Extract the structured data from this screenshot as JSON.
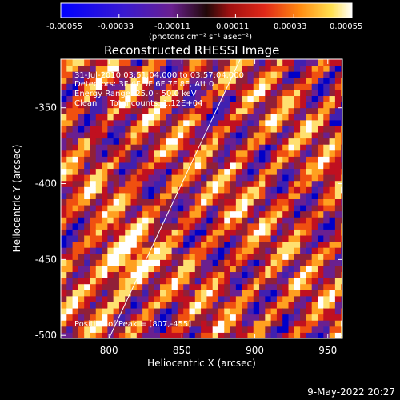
{
  "title": "Reconstructed RHESSI Image",
  "colorbar": {
    "min": -0.00055,
    "max": 0.00055,
    "tick_labels": [
      "-0.00055",
      "-0.00033",
      "-0.00011",
      "0.00011",
      "0.00033",
      "0.00055"
    ],
    "units_label": "(photons cm⁻² s⁻¹ asec⁻²)"
  },
  "info": {
    "time_range": "31-Jul-2010 03:51:04.000 to 03:57:04.000",
    "detectors": "Detectors: 3F 4F 5F 6F 7F 8F, Att 0",
    "energy_range": "Energy Range: 25.0 - 50.0 keV",
    "method_counts": "Clean     Total counts: 1.12E+04",
    "peak_position": "Position of Peak = [807,-455]"
  },
  "footer": {
    "date": "9-May-2022 20:27"
  },
  "chart_data": {
    "type": "heatmap",
    "title": "Reconstructed RHESSI Image",
    "xlabel": "Heliocentric X (arcsec)",
    "ylabel": "Heliocentric Y (arcsec)",
    "xlim": [
      767,
      960
    ],
    "ylim": [
      -502,
      -318
    ],
    "x_ticks": [
      800,
      850,
      900,
      950
    ],
    "y_ticks": [
      -350,
      -400,
      -450,
      -500
    ],
    "x_tick_labels": [
      "800",
      "850",
      "900",
      "950"
    ],
    "y_tick_labels": [
      "-350",
      "-400",
      "-450",
      "-500"
    ],
    "value_range": [
      -0.00055,
      0.00055
    ],
    "peak": [
      807,
      -455
    ],
    "limb_line": {
      "x": [
        800,
        890
      ],
      "y": [
        -502,
        -318
      ]
    },
    "colormap": [
      "#0000c8",
      "#4020b0",
      "#6a2090",
      "#902038",
      "#c01020",
      "#f05010",
      "#ffa020",
      "#ffe070",
      "#ffffff"
    ]
  }
}
